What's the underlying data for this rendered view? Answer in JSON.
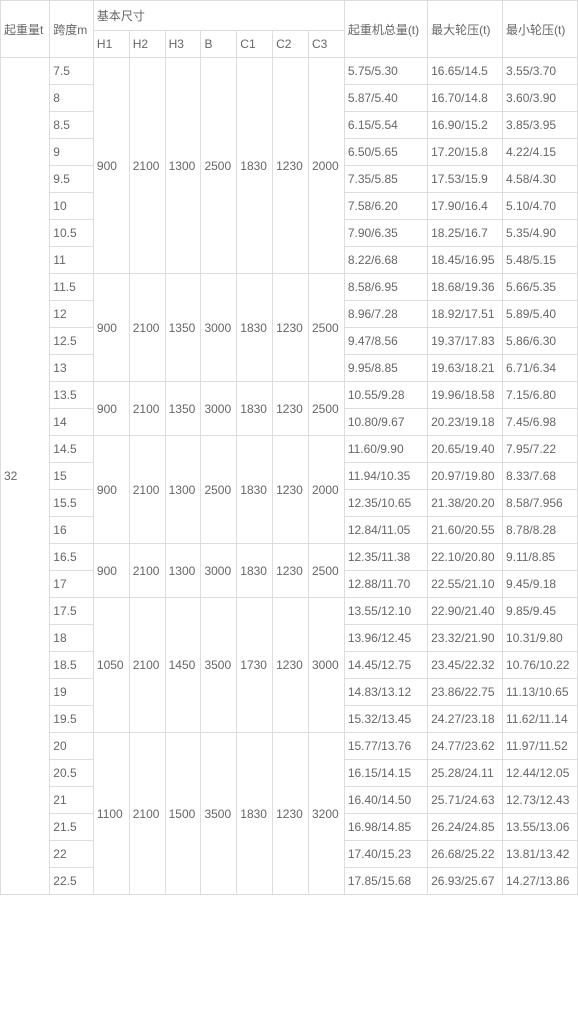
{
  "header": {
    "lifting_capacity": "起重量t",
    "span": "跨度m",
    "basic_dims": "基本尺寸",
    "h1": "H1",
    "h2": "H2",
    "h3": "H3",
    "b": "B",
    "c1": "C1",
    "c2": "C2",
    "c3": "C3",
    "total_weight": "起重机总量(t)",
    "max_wheel": "最大轮压(t)",
    "min_wheel": "最小轮压(t)"
  },
  "capacity": "32",
  "groups": [
    {
      "dims": {
        "h1": "900",
        "h2": "2100",
        "h3": "1300",
        "b": "2500",
        "c1": "1830",
        "c2": "1230",
        "c3": "2000"
      },
      "rows": [
        {
          "span": "7.5",
          "total": "5.75/5.30",
          "max": "16.65/14.5",
          "min": "3.55/3.70"
        },
        {
          "span": "8",
          "total": "5.87/5.40",
          "max": "16.70/14.8",
          "min": "3.60/3.90"
        },
        {
          "span": "8.5",
          "total": "6.15/5.54",
          "max": "16.90/15.2",
          "min": "3.85/3.95"
        },
        {
          "span": "9",
          "total": "6.50/5.65",
          "max": "17.20/15.8",
          "min": "4.22/4.15"
        },
        {
          "span": "9.5",
          "total": "7.35/5.85",
          "max": "17.53/15.9",
          "min": "4.58/4.30"
        },
        {
          "span": "10",
          "total": "7.58/6.20",
          "max": "17.90/16.4",
          "min": "5.10/4.70"
        },
        {
          "span": "10.5",
          "total": "7.90/6.35",
          "max": "18.25/16.7",
          "min": "5.35/4.90"
        },
        {
          "span": "11",
          "total": "8.22/6.68",
          "max": "18.45/16.95",
          "min": "5.48/5.15"
        }
      ]
    },
    {
      "dims": {
        "h1": "900",
        "h2": "2100",
        "h3": "1350",
        "b": "3000",
        "c1": "1830",
        "c2": "1230",
        "c3": "2500"
      },
      "rows": [
        {
          "span": "11.5",
          "total": "8.58/6.95",
          "max": "18.68/19.36",
          "min": "5.66/5.35"
        },
        {
          "span": "12",
          "total": "8.96/7.28",
          "max": "18.92/17.51",
          "min": "5.89/5.40"
        },
        {
          "span": "12.5",
          "total": "9.47/8.56",
          "max": "19.37/17.83",
          "min": "5.86/6.30"
        },
        {
          "span": "13",
          "total": "9.95/8.85",
          "max": "19.63/18.21",
          "min": "6.71/6.34"
        }
      ]
    },
    {
      "dims": {
        "h1": "900",
        "h2": "2100",
        "h3": "1350",
        "b": "3000",
        "c1": "1830",
        "c2": "1230",
        "c3": "2500"
      },
      "rows": [
        {
          "span": "13.5",
          "total": "10.55/9.28",
          "max": "19.96/18.58",
          "min": "7.15/6.80"
        },
        {
          "span": "14",
          "total": "10.80/9.67",
          "max": "20.23/19.18",
          "min": "7.45/6.98"
        }
      ]
    },
    {
      "dims": {
        "h1": "900",
        "h2": "2100",
        "h3": "1300",
        "b": "2500",
        "c1": "1830",
        "c2": "1230",
        "c3": "2000"
      },
      "rows": [
        {
          "span": "14.5",
          "total": "11.60/9.90",
          "max": "20.65/19.40",
          "min": "7.95/7.22"
        },
        {
          "span": "15",
          "total": "11.94/10.35",
          "max": "20.97/19.80",
          "min": "8.33/7.68"
        },
        {
          "span": "15.5",
          "total": "12.35/10.65",
          "max": "21.38/20.20",
          "min": "8.58/7.956"
        },
        {
          "span": "16",
          "total": "12.84/11.05",
          "max": "21.60/20.55",
          "min": "8.78/8.28"
        }
      ]
    },
    {
      "dims": {
        "h1": "900",
        "h2": "2100",
        "h3": "1300",
        "b": "3000",
        "c1": "1830",
        "c2": "1230",
        "c3": "2500"
      },
      "rows": [
        {
          "span": "16.5",
          "total": "12.35/11.38",
          "max": "22.10/20.80",
          "min": "9.11/8.85"
        },
        {
          "span": "17",
          "total": "12.88/11.70",
          "max": "22.55/21.10",
          "min": "9.45/9.18"
        }
      ]
    },
    {
      "dims": {
        "h1": "1050",
        "h2": "2100",
        "h3": "1450",
        "b": "3500",
        "c1": "1730",
        "c2": "1230",
        "c3": "3000"
      },
      "rows": [
        {
          "span": "17.5",
          "total": "13.55/12.10",
          "max": "22.90/21.40",
          "min": "9.85/9.45"
        },
        {
          "span": "18",
          "total": "13.96/12.45",
          "max": "23.32/21.90",
          "min": "10.31/9.80"
        },
        {
          "span": "18.5",
          "total": "14.45/12.75",
          "max": "23.45/22.32",
          "min": "10.76/10.22"
        },
        {
          "span": "19",
          "total": "14.83/13.12",
          "max": "23.86/22.75",
          "min": "11.13/10.65"
        },
        {
          "span": "19.5",
          "total": "15.32/13.45",
          "max": "24.27/23.18",
          "min": "11.62/11.14"
        }
      ]
    },
    {
      "dims": {
        "h1": "1100",
        "h2": "2100",
        "h3": "1500",
        "b": "3500",
        "c1": "1830",
        "c2": "1230",
        "c3": "3200"
      },
      "rows": [
        {
          "span": "20",
          "total": "15.77/13.76",
          "max": "24.77/23.62",
          "min": "11.97/11.52"
        },
        {
          "span": "20.5",
          "total": "16.15/14.15",
          "max": "25.28/24.11",
          "min": "12.44/12.05"
        },
        {
          "span": "21",
          "total": "16.40/14.50",
          "max": "25.71/24.63",
          "min": "12.73/12.43"
        },
        {
          "span": "21.5",
          "total": "16.98/14.85",
          "max": "26.24/24.85",
          "min": "13.55/13.06"
        },
        {
          "span": "22",
          "total": "17.40/15.23",
          "max": "26.68/25.22",
          "min": "13.81/13.42"
        },
        {
          "span": "22.5",
          "total": "17.85/15.68",
          "max": "26.93/25.67",
          "min": "14.27/13.86"
        }
      ]
    }
  ],
  "style": {
    "border_color": "#dddddd",
    "text_color": "#666666",
    "bg_color": "#ffffff",
    "font_size": 12
  }
}
